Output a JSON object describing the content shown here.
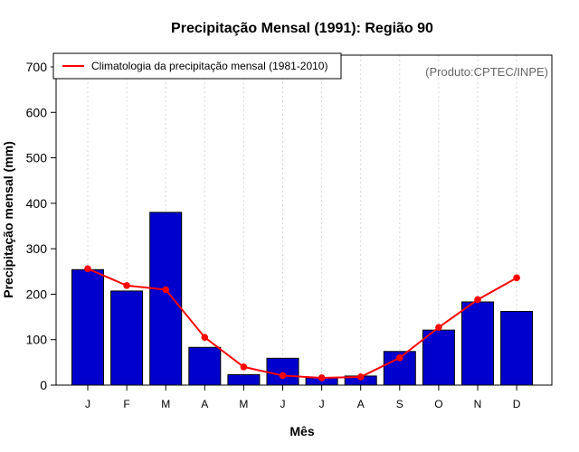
{
  "chart_data": {
    "type": "bar",
    "title": "Precipitação Mensal (1991): Região 90",
    "xlabel": "Mês",
    "ylabel": "Precipitação mensal (mm)",
    "ylim": [
      0,
      700
    ],
    "yticks": [
      0,
      100,
      200,
      300,
      400,
      500,
      600,
      700
    ],
    "categories": [
      "J",
      "F",
      "M",
      "A",
      "M",
      "J",
      "J",
      "A",
      "S",
      "O",
      "N",
      "D"
    ],
    "series": [
      {
        "name": "Precipitação mensal (1991)",
        "type": "bar",
        "color": "#0000cd",
        "values": [
          254,
          207,
          380,
          83,
          23,
          59,
          16,
          20,
          74,
          121,
          183,
          162
        ]
      },
      {
        "name": "Climatologia da precipitação mensal (1981-2010)",
        "type": "line",
        "color": "#ff0000",
        "values": [
          256,
          219,
          210,
          105,
          40,
          21,
          16,
          18,
          60,
          127,
          188,
          236
        ]
      }
    ],
    "legend": {
      "position": "top-left",
      "entries": [
        "Climatologia da precipitação mensal (1981-2010)"
      ]
    },
    "annotation": "(Produto:CPTEC/INPE)",
    "grid": "vertical dotted"
  }
}
